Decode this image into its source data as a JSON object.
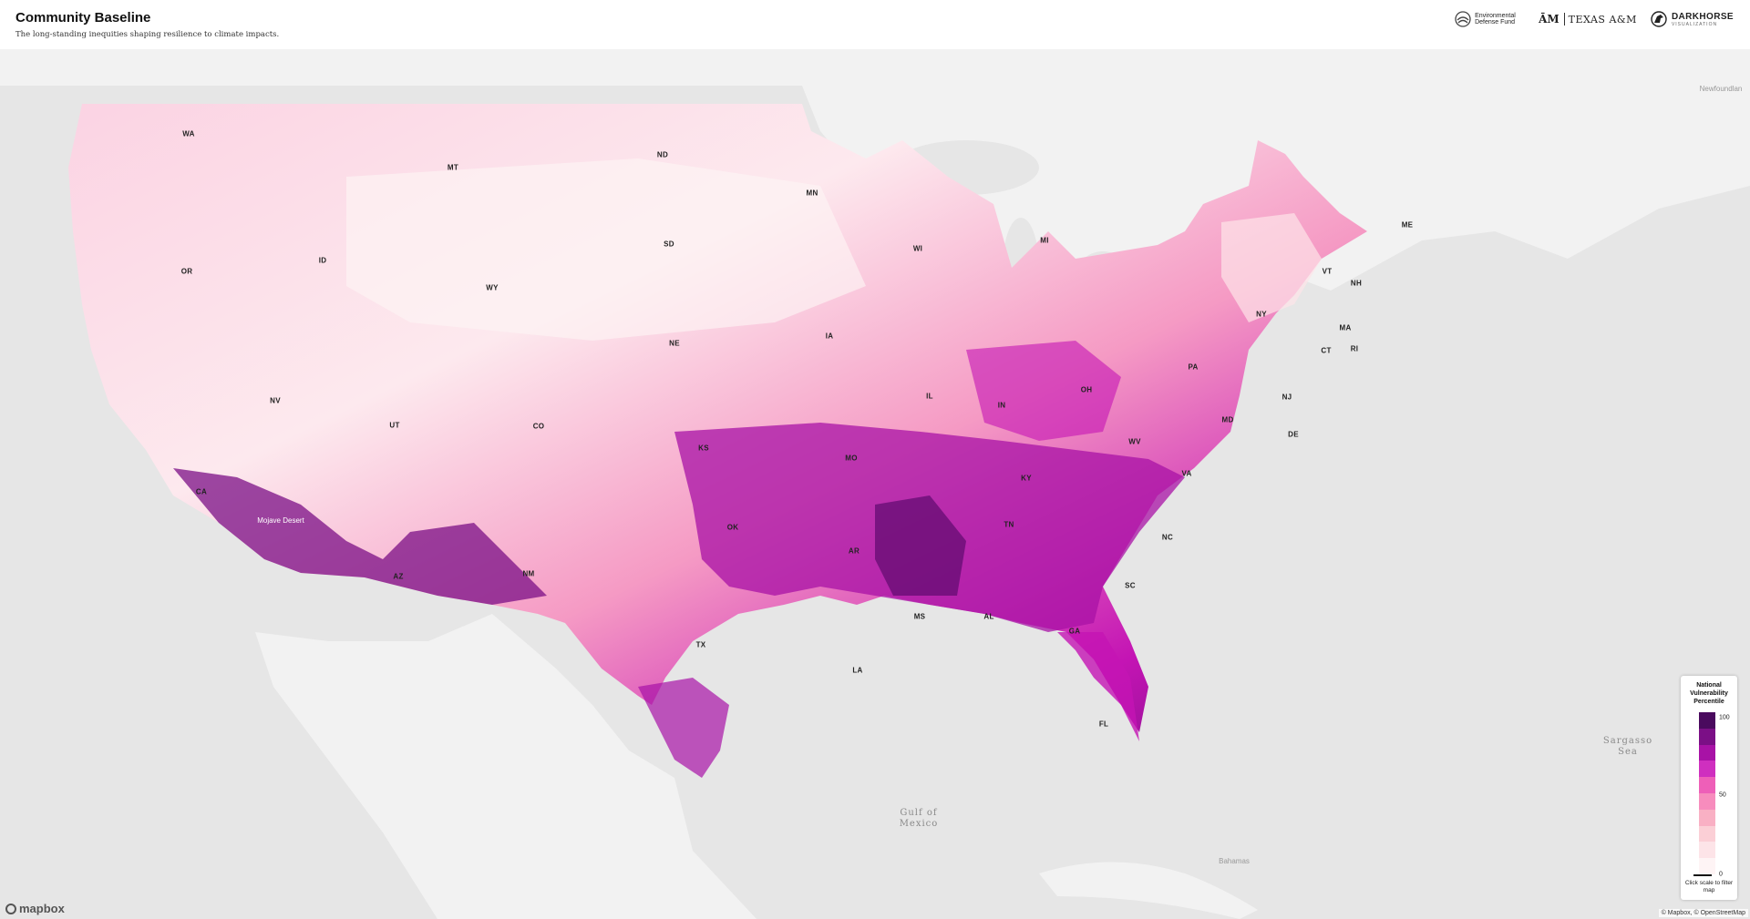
{
  "header": {
    "title": "Community Baseline",
    "subtitle": "The long-standing inequities shaping resilience to climate impacts."
  },
  "logos": {
    "edf": "Environmental Defense Fund",
    "tamu_mark": "ĀM",
    "tamu": "TEXAS A&M",
    "darkhorse": "DARKHORSE",
    "darkhorse_sub": "VISUALIZATION"
  },
  "map": {
    "colors": {
      "water": "#e6e6e6",
      "land": "#f2f2f2",
      "low": "#fde9ee",
      "mid": "#f59ac4",
      "high": "#c414b4",
      "max": "#5e0a6e"
    },
    "state_labels": [
      "WA",
      "MT",
      "ND",
      "MN",
      "WI",
      "MI",
      "ME",
      "OR",
      "ID",
      "WY",
      "SD",
      "VT",
      "NH",
      "NY",
      "MA",
      "CT",
      "RI",
      "IA",
      "NE",
      "NV",
      "UT",
      "CO",
      "IL",
      "IN",
      "OH",
      "PA",
      "NJ",
      "DE",
      "MD",
      "KS",
      "MO",
      "WV",
      "CA",
      "KY",
      "VA",
      "TN",
      "OK",
      "AR",
      "NC",
      "SC",
      "NM",
      "AZ",
      "MS",
      "AL",
      "GA",
      "TX",
      "LA",
      "FL"
    ],
    "geo_labels": {
      "newfoundland": "Newfoundlan",
      "mojave": "Mojave Desert",
      "gulf": "Gulf of\nMexico",
      "sargasso": "Sargasso\nSea",
      "bahamas": "Bahamas"
    }
  },
  "legend": {
    "title": "National Vulnerability Percentile",
    "ticks": [
      "100",
      "50",
      "0"
    ],
    "colors": [
      "#4a0a5e",
      "#7b0f86",
      "#a812a6",
      "#cf2fbf",
      "#ee5fb8",
      "#f78cbd",
      "#f9b0c4",
      "#fbcfd6",
      "#fde4e8",
      "#fef4f5"
    ],
    "hint": "Click scale to filter map"
  },
  "mapbox": "mapbox",
  "attribution": "© Mapbox, © OpenStreetMap"
}
